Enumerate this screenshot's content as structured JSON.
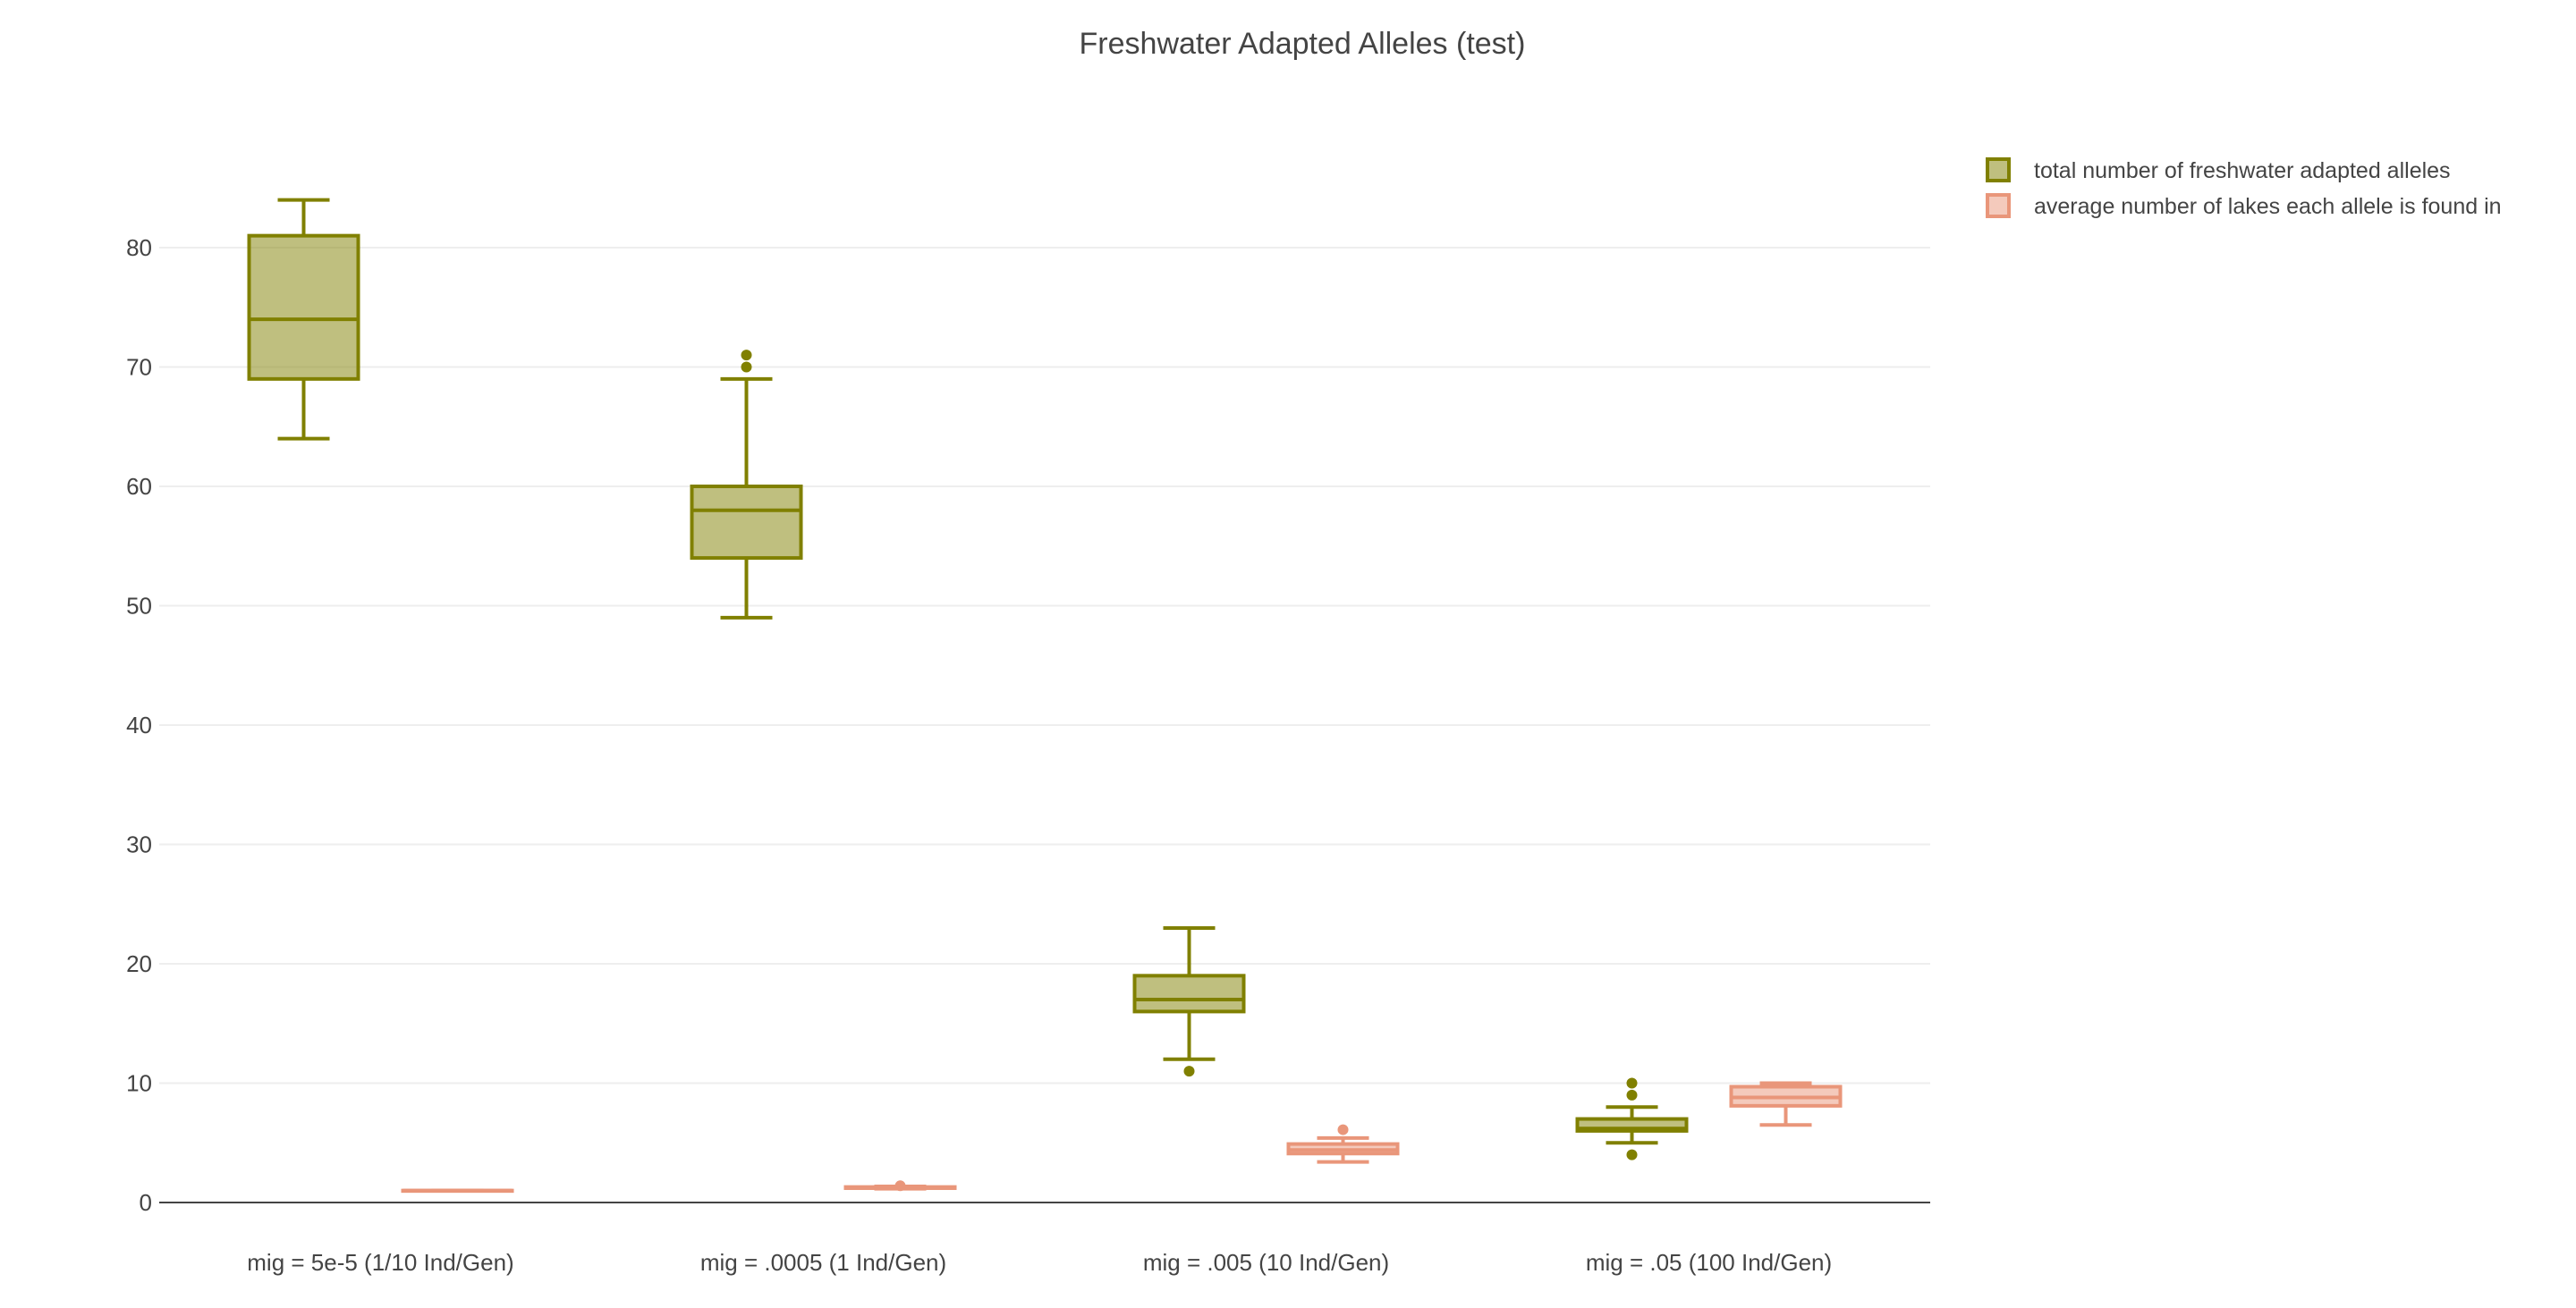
{
  "chart_data": {
    "type": "box",
    "title": "Freshwater Adapted Alleles (test)",
    "xlabel": "",
    "ylabel": "",
    "ylim": [
      0,
      90
    ],
    "yticks": [
      0,
      10,
      20,
      30,
      40,
      50,
      60,
      70,
      80
    ],
    "grid": true,
    "legend_position": "top-right",
    "categories": [
      "mig = 5e-5 (1/10 Ind/Gen)",
      "mig = .0005 (1 Ind/Gen)",
      "mig = .005 (10 Ind/Gen)",
      "mig = .05 (100 Ind/Gen)"
    ],
    "series": [
      {
        "name": "total number of freshwater adapted alleles",
        "color": "#808000",
        "fill": "rgba(128,128,0,0.5)",
        "boxes": [
          {
            "min": 64,
            "q1": 69,
            "median": 74,
            "q3": 81,
            "max": 84,
            "outliers": []
          },
          {
            "min": 49,
            "q1": 54,
            "median": 58,
            "q3": 60,
            "max": 69,
            "outliers": [
              70,
              71
            ]
          },
          {
            "min": 12,
            "q1": 16,
            "median": 17,
            "q3": 19,
            "max": 23,
            "outliers": [
              11
            ]
          },
          {
            "min": 5,
            "q1": 6,
            "median": 6.2,
            "q3": 7,
            "max": 8,
            "outliers": [
              4,
              9,
              10
            ]
          }
        ]
      },
      {
        "name": "average number of lakes each allele is found in",
        "color": "#E9967A",
        "fill": "rgba(233,150,122,0.5)",
        "boxes": [
          {
            "min": 1,
            "q1": 1,
            "median": 1,
            "q3": 1,
            "max": 1,
            "outliers": []
          },
          {
            "min": 1.15,
            "q1": 1.2,
            "median": 1.25,
            "q3": 1.3,
            "max": 1.35,
            "outliers": [
              1.4
            ]
          },
          {
            "min": 3.4,
            "q1": 4.1,
            "median": 4.4,
            "q3": 4.9,
            "max": 5.4,
            "outliers": [
              6.1
            ]
          },
          {
            "min": 6.5,
            "q1": 8.1,
            "median": 8.8,
            "q3": 9.7,
            "max": 10,
            "outliers": []
          }
        ]
      }
    ]
  }
}
